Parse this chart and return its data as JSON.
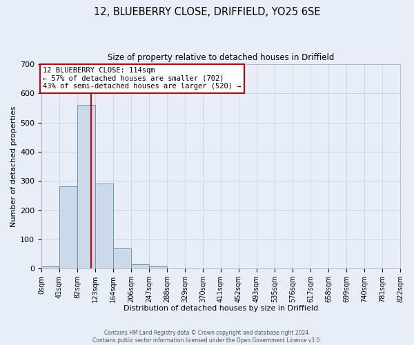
{
  "title": "12, BLUEBERRY CLOSE, DRIFFIELD, YO25 6SE",
  "subtitle": "Size of property relative to detached houses in Driffield",
  "xlabel": "Distribution of detached houses by size in Driffield",
  "ylabel": "Number of detached properties",
  "bin_edges": [
    0,
    41,
    82,
    123,
    164,
    206,
    247,
    288,
    329,
    370,
    411,
    452,
    493,
    535,
    576,
    617,
    658,
    699,
    740,
    781,
    822
  ],
  "bar_heights": [
    7,
    282,
    560,
    292,
    68,
    14,
    8,
    0,
    0,
    0,
    0,
    0,
    0,
    0,
    0,
    0,
    0,
    0,
    0,
    0
  ],
  "bar_color": "#ccd9e8",
  "bar_edge_color": "#6699bb",
  "property_size": 114,
  "vline_color": "#cc0000",
  "annotation_line1": "12 BLUEBERRY CLOSE: 114sqm",
  "annotation_line2": "← 57% of detached houses are smaller (702)",
  "annotation_line3": "43% of semi-detached houses are larger (520) →",
  "annotation_box_edge_color": "#cc0000",
  "annotation_box_face_color": "#ffffff",
  "ylim": [
    0,
    700
  ],
  "yticks": [
    0,
    100,
    200,
    300,
    400,
    500,
    600,
    700
  ],
  "tick_labels": [
    "0sqm",
    "41sqm",
    "82sqm",
    "123sqm",
    "164sqm",
    "206sqm",
    "247sqm",
    "288sqm",
    "329sqm",
    "370sqm",
    "411sqm",
    "452sqm",
    "493sqm",
    "535sqm",
    "576sqm",
    "617sqm",
    "658sqm",
    "699sqm",
    "740sqm",
    "781sqm",
    "822sqm"
  ],
  "footer_line1": "Contains HM Land Registry data © Crown copyright and database right 2024.",
  "footer_line2": "Contains public sector information licensed under the Open Government Licence v3.0.",
  "background_color": "#e8eef8",
  "grid_color": "#c8ccdd",
  "title_fontsize": 10.5,
  "subtitle_fontsize": 8.5,
  "ylabel_fontsize": 8,
  "xlabel_fontsize": 8,
  "annotation_fontsize": 7.5,
  "footer_fontsize": 5.5,
  "tick_fontsize": 7,
  "ytick_fontsize": 8
}
